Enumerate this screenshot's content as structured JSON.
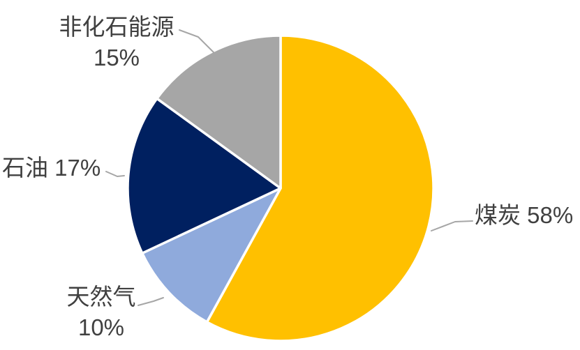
{
  "chart_data": {
    "type": "pie",
    "start_angle": "12 o'clock",
    "direction": "clockwise",
    "legend": "none",
    "background": "#FFFFFF",
    "slice_border_color": "#FFFFFF",
    "label_text_color": "#404040",
    "leader_line_color": "#A6A6A6",
    "slices": [
      {
        "name": "煤炭",
        "value_pct": 58,
        "color": "#FFC000",
        "label_lines": [
          "煤炭 58%"
        ]
      },
      {
        "name": "天然气",
        "value_pct": 10,
        "color": "#8FAADC",
        "label_lines": [
          "天然气",
          "10%"
        ]
      },
      {
        "name": "石油",
        "value_pct": 17,
        "color": "#002060",
        "label_lines": [
          "石油 17%"
        ]
      },
      {
        "name": "非化石能源",
        "value_pct": 15,
        "color": "#A6A6A6",
        "label_lines": [
          "非化石能源",
          "15%"
        ]
      }
    ]
  }
}
